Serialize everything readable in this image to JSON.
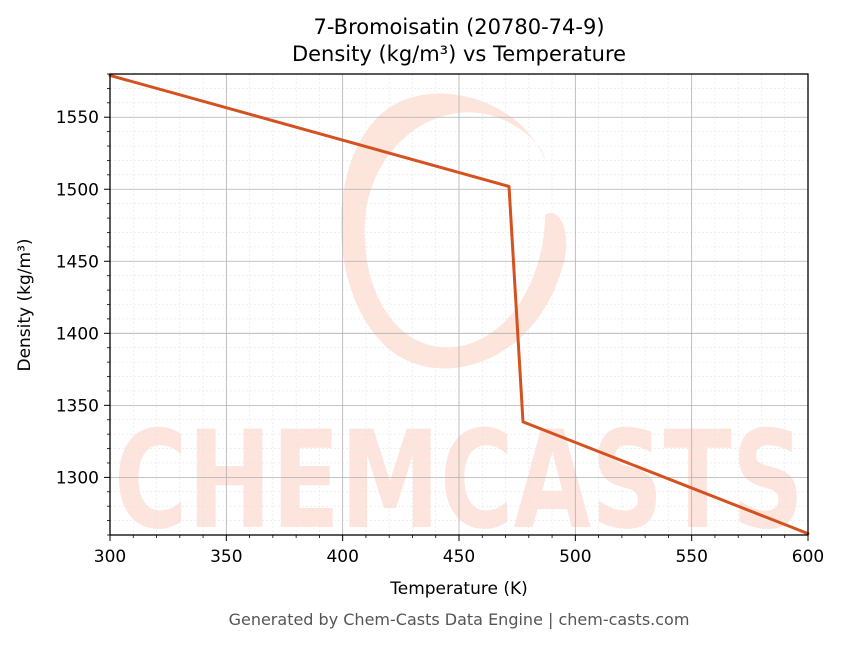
{
  "chart_data": {
    "type": "line",
    "title": "7-Bromoisatin (20780-74-9)",
    "subtitle": "Density (kg/m³) vs Temperature",
    "xlabel": "Temperature (K)",
    "ylabel": "Density (kg/m³)",
    "xlim": [
      300,
      600
    ],
    "ylim": [
      1260,
      1580
    ],
    "xticks": [
      300,
      350,
      400,
      450,
      500,
      550,
      600
    ],
    "yticks": [
      1300,
      1350,
      1400,
      1450,
      1500,
      1550
    ],
    "grid": true,
    "minor_grid": true,
    "legend": "none",
    "series": [
      {
        "color": "#d4521f",
        "x": [
          300,
          471.5,
          477.5,
          600
        ],
        "y": [
          1579,
          1502,
          1338.5,
          1261
        ]
      }
    ]
  },
  "watermark": {
    "text": "CHEMCASTS",
    "color": "#fde0d6"
  },
  "footer": "Generated by Chem-Casts Data Engine | chem-casts.com"
}
